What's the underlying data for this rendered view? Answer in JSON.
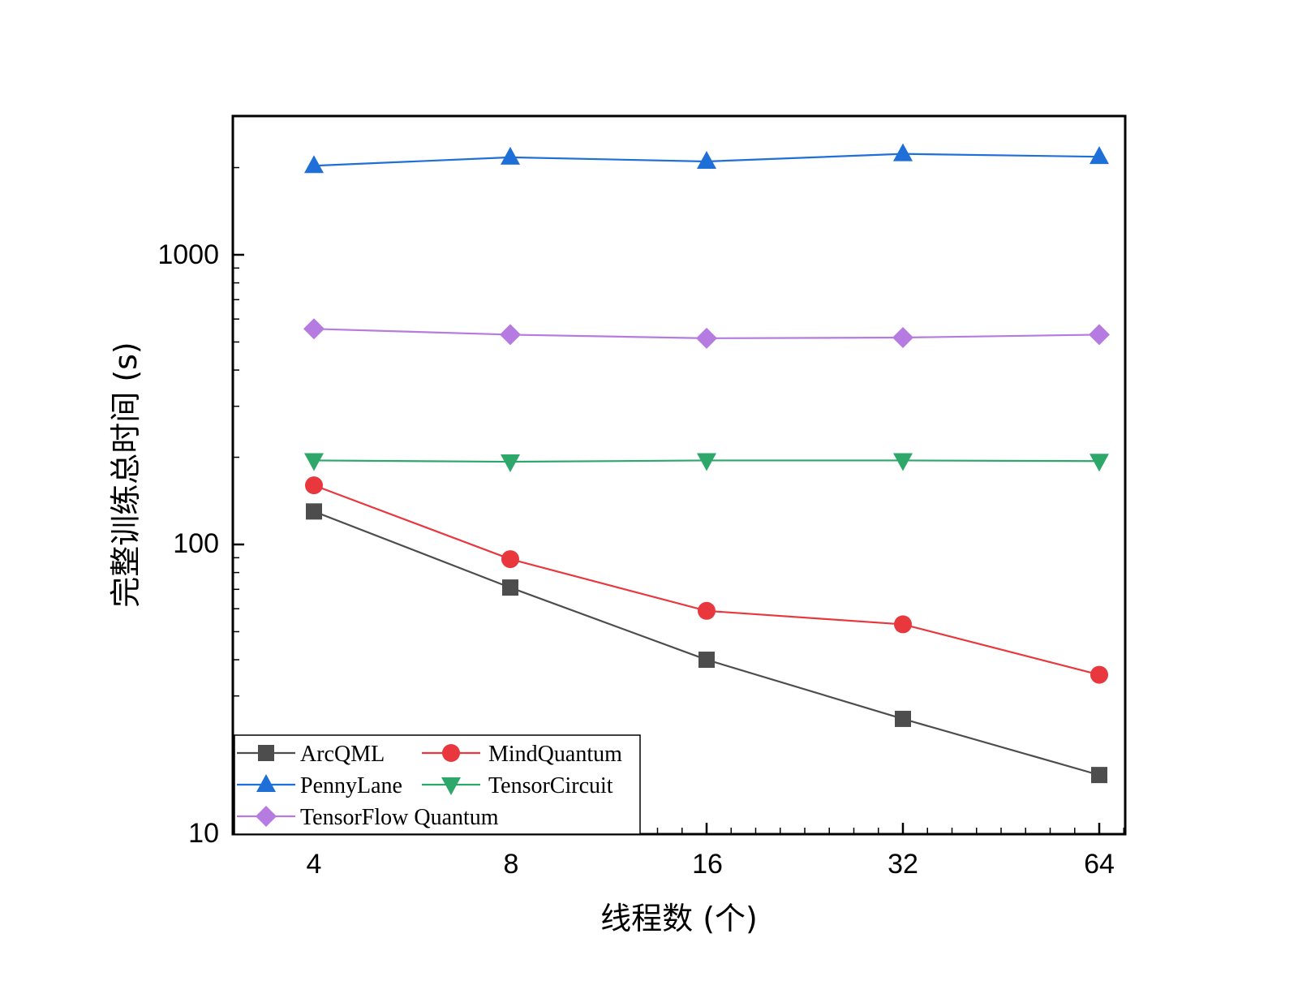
{
  "chart_data": {
    "type": "line",
    "title": "",
    "xlabel": "线程数 (个)",
    "ylabel": "完整训练总时间 (s)",
    "x_scale": "log2",
    "y_scale": "log10",
    "x": [
      4,
      8,
      16,
      32,
      64
    ],
    "xticks": [
      "4",
      "8",
      "16",
      "32",
      "64"
    ],
    "yticks": [
      "10",
      "100",
      "1000"
    ],
    "ylim": [
      10,
      3000
    ],
    "grid": false,
    "legend_position": "bottom-left",
    "series": [
      {
        "name": "ArcQML",
        "values": [
          130,
          71,
          40,
          25,
          16
        ],
        "color": "#4d4d4d",
        "marker": "square"
      },
      {
        "name": "MindQuantum",
        "values": [
          160,
          89,
          59,
          53,
          35.5
        ],
        "color": "#e8383d",
        "marker": "circle"
      },
      {
        "name": "PennyLane",
        "values": [
          2030,
          2170,
          2100,
          2230,
          2180
        ],
        "color": "#1f6fd8",
        "marker": "triangle-up"
      },
      {
        "name": "TensorCircuit",
        "values": [
          195,
          193,
          195,
          195,
          194
        ],
        "color": "#2ea86a",
        "marker": "triangle-down"
      },
      {
        "name": "TensorFlow Quantum",
        "values": [
          555,
          530,
          515,
          518,
          530
        ],
        "color": "#b57be0",
        "marker": "diamond"
      }
    ]
  }
}
